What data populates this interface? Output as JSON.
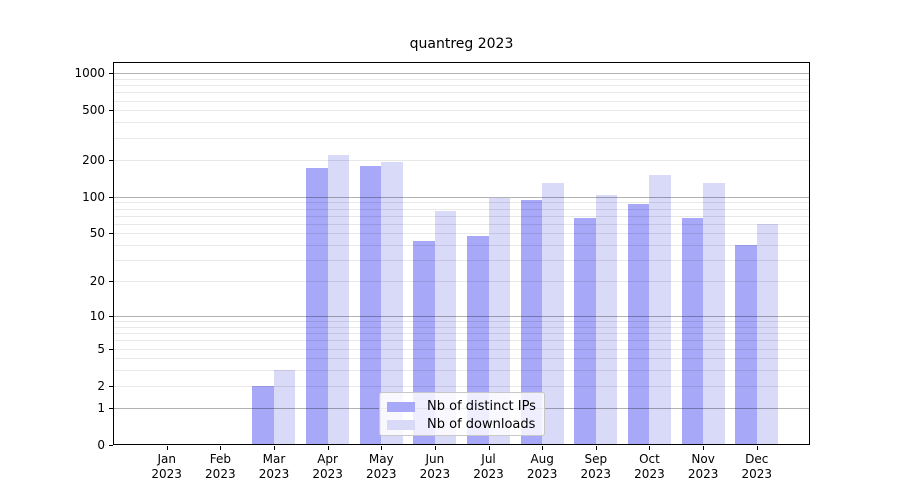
{
  "title": "quantreg 2023",
  "legend": {
    "items": [
      "Nb of distinct IPs",
      "Nb of downloads"
    ]
  },
  "colors": {
    "bar_distinct_ips": "#a8a8f8",
    "bar_downloads": "#d9d9f8",
    "grid_decade": "#b8b8b8",
    "grid_minor": "#ebebeb",
    "axis": "#000000"
  },
  "chart_data": {
    "type": "bar",
    "title": "quantreg 2023",
    "categories": [
      "Jan",
      "Feb",
      "Mar",
      "Apr",
      "May",
      "Jun",
      "Jul",
      "Aug",
      "Sep",
      "Oct",
      "Nov",
      "Dec"
    ],
    "x_year": "2023",
    "series": [
      {
        "name": "Nb of distinct IPs",
        "color": "#a8a8f8",
        "values": [
          0,
          0,
          2,
          170,
          178,
          43,
          48,
          94,
          67,
          87,
          67,
          40
        ]
      },
      {
        "name": "Nb of downloads",
        "color": "#d9d9f8",
        "values": [
          0,
          0,
          3,
          220,
          190,
          76,
          97,
          130,
          103,
          150,
          128,
          60
        ]
      }
    ],
    "y_ticks": [
      0,
      1,
      2,
      5,
      10,
      20,
      50,
      100,
      200,
      500,
      1000
    ],
    "y_scale": "log1p",
    "ylim": [
      0,
      1400
    ],
    "grid": "horizontal, minor log lines, darker lines at decades",
    "legend_position": "inside lower center",
    "xlabel": "",
    "ylabel": ""
  }
}
